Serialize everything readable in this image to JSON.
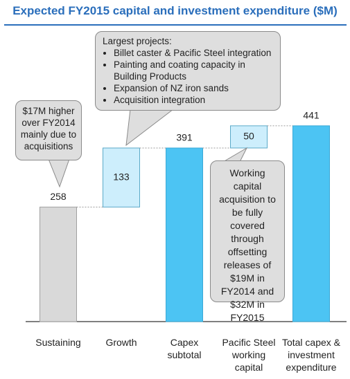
{
  "chart_data": {
    "type": "waterfall",
    "title": "Expected FY2015 capital and investment expenditure ($M)",
    "categories": [
      "Sustaining",
      "Growth",
      "Capex subtotal",
      "Pacific Steel working capital",
      "Total capex & investment expenditure"
    ],
    "values": [
      258,
      133,
      391,
      50,
      441
    ],
    "totals": [
      false,
      false,
      true,
      false,
      true
    ],
    "colors": [
      "#d9d9d9",
      "#cdeefc",
      "#4cc4f3",
      "#cdeefc",
      "#4cc4f3"
    ],
    "annotations": [
      "$17M higher over FY2014 mainly due to acquisitions",
      "Working capital acquisition to be fully covered through offsetting releases of $19M in FY2014 and $32M in FY2015"
    ],
    "projects": {
      "heading": "Largest projects:",
      "items": [
        "Billet caster & Pacific Steel integration",
        "Painting and coating capacity in Building Products",
        "Expansion of NZ iron sands",
        "Acquisition integration"
      ]
    }
  }
}
